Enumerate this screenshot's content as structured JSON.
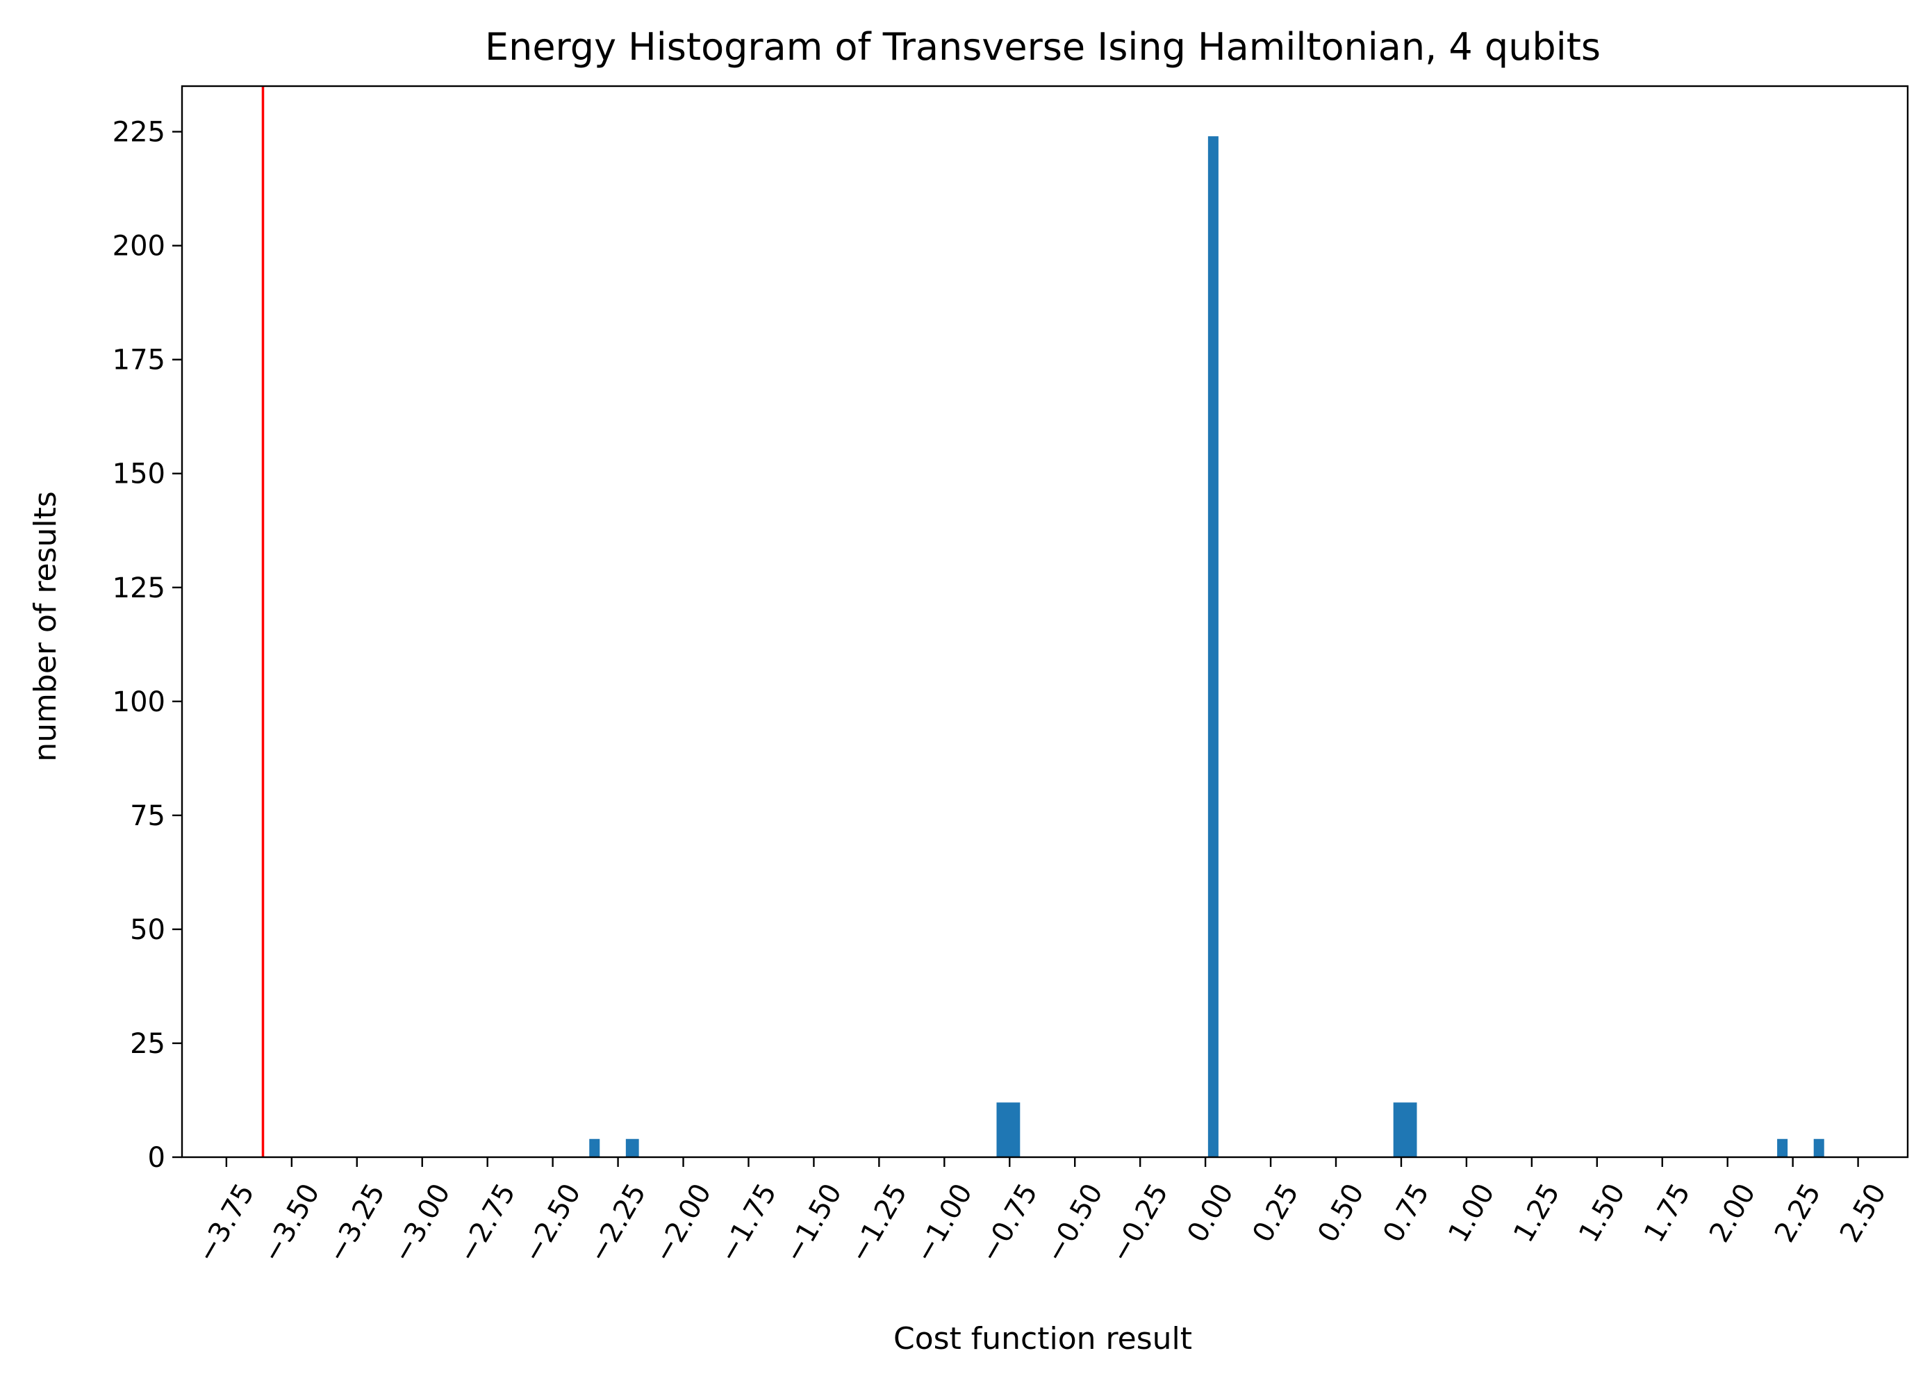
{
  "chart_data": {
    "type": "bar",
    "title": "Energy Histogram of Transverse Ising Hamiltonian, 4 qubits",
    "xlabel": "Cost function result",
    "ylabel": "number of results",
    "xlim": [
      -3.92,
      2.69
    ],
    "ylim": [
      0,
      235
    ],
    "x_ticks": [
      -3.75,
      -3.5,
      -3.25,
      -3.0,
      -2.75,
      -2.5,
      -2.25,
      -2.0,
      -1.75,
      -1.5,
      -1.25,
      -1.0,
      -0.75,
      -0.5,
      -0.25,
      0.0,
      0.25,
      0.5,
      0.75,
      1.0,
      1.25,
      1.5,
      1.75,
      2.0,
      2.25,
      2.5
    ],
    "x_tick_labels": [
      "−3.75",
      "−3.50",
      "−3.25",
      "−3.00",
      "−2.75",
      "−2.50",
      "−2.25",
      "−2.00",
      "−1.75",
      "−1.50",
      "−1.25",
      "−1.00",
      "−0.75",
      "−0.50",
      "−0.25",
      "0.00",
      "0.25",
      "0.50",
      "0.75",
      "1.00",
      "1.25",
      "1.50",
      "1.75",
      "2.00",
      "2.25",
      "2.50"
    ],
    "y_ticks": [
      0,
      25,
      50,
      75,
      100,
      125,
      150,
      175,
      200,
      225
    ],
    "y_tick_labels": [
      "0",
      "25",
      "50",
      "75",
      "100",
      "125",
      "150",
      "175",
      "200",
      "225"
    ],
    "bars": [
      {
        "x_start": -2.36,
        "x_end": -2.32,
        "value": 4
      },
      {
        "x_start": -2.22,
        "x_end": -2.17,
        "value": 4
      },
      {
        "x_start": -0.8,
        "x_end": -0.71,
        "value": 12
      },
      {
        "x_start": 0.01,
        "x_end": 0.05,
        "value": 224
      },
      {
        "x_start": 0.72,
        "x_end": 0.81,
        "value": 12
      },
      {
        "x_start": 2.19,
        "x_end": 2.23,
        "value": 4
      },
      {
        "x_start": 2.33,
        "x_end": 2.37,
        "value": 4
      }
    ],
    "reference_line": {
      "x": -3.61,
      "color": "#ff0000"
    },
    "bar_color": "#1f77b4",
    "grid": false,
    "legend": "none"
  }
}
